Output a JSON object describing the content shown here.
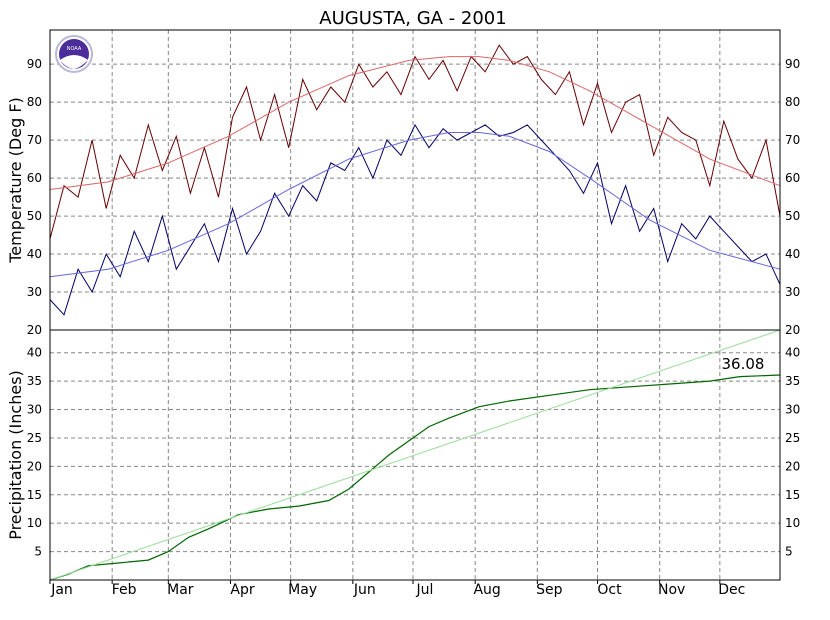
{
  "logo": {
    "text": "NOAA",
    "icon": "noaa-logo-icon",
    "color": "#4a2d9a"
  },
  "chart_data": [
    {
      "type": "line",
      "title": "AUGUSTA, GA - 2001",
      "ylabel": "Temperature (Deg F)",
      "xlabel": "",
      "ylim": [
        20,
        99
      ],
      "yticks": [
        20,
        30,
        40,
        50,
        60,
        70,
        80,
        90
      ],
      "categories": [
        "Jan",
        "Feb",
        "Mar",
        "Apr",
        "May",
        "Jun",
        "Jul",
        "Aug",
        "Sep",
        "Oct",
        "Nov",
        "Dec"
      ],
      "grid": true,
      "x_unit": "day of year",
      "series": [
        {
          "color": "#660000",
          "x": [
            1,
            8,
            15,
            22,
            29,
            36,
            43,
            50,
            57,
            64,
            71,
            78,
            85,
            92,
            99,
            106,
            113,
            120,
            127,
            134,
            141,
            148,
            155,
            162,
            169,
            176,
            183,
            190,
            197,
            204,
            211,
            218,
            225,
            232,
            239,
            246,
            253,
            260,
            267,
            274,
            281,
            288,
            295,
            302,
            309,
            316,
            323,
            330,
            337,
            344,
            351,
            358,
            365
          ],
          "values": [
            44,
            58,
            55,
            70,
            52,
            66,
            60,
            74,
            62,
            71,
            56,
            68,
            55,
            76,
            84,
            70,
            82,
            68,
            86,
            78,
            84,
            80,
            90,
            84,
            88,
            82,
            92,
            86,
            91,
            83,
            92,
            88,
            95,
            90,
            92,
            86,
            82,
            88,
            74,
            85,
            72,
            80,
            82,
            66,
            76,
            72,
            70,
            58,
            75,
            65,
            60,
            70,
            50
          ]
        },
        {
          "color": "#000066",
          "x": [
            1,
            8,
            15,
            22,
            29,
            36,
            43,
            50,
            57,
            64,
            71,
            78,
            85,
            92,
            99,
            106,
            113,
            120,
            127,
            134,
            141,
            148,
            155,
            162,
            169,
            176,
            183,
            190,
            197,
            204,
            211,
            218,
            225,
            232,
            239,
            246,
            253,
            260,
            267,
            274,
            281,
            288,
            295,
            302,
            309,
            316,
            323,
            330,
            337,
            344,
            351,
            358,
            365
          ],
          "values": [
            28,
            24,
            36,
            30,
            40,
            34,
            46,
            38,
            50,
            36,
            42,
            48,
            38,
            52,
            40,
            46,
            56,
            50,
            58,
            54,
            64,
            62,
            68,
            60,
            70,
            66,
            74,
            68,
            73,
            70,
            72,
            74,
            71,
            72,
            74,
            70,
            66,
            62,
            56,
            64,
            48,
            58,
            46,
            52,
            38,
            48,
            44,
            50,
            46,
            42,
            38,
            40,
            32
          ]
        },
        {
          "color": "#dd6666",
          "x": [
            1,
            30,
            60,
            90,
            120,
            150,
            180,
            200,
            215,
            230,
            250,
            270,
            300,
            330,
            365
          ],
          "values": [
            57,
            59,
            64,
            71,
            80,
            87,
            91,
            92,
            92,
            91,
            88,
            83,
            74,
            65,
            58
          ]
        },
        {
          "color": "#6666dd",
          "x": [
            1,
            30,
            60,
            90,
            120,
            150,
            180,
            200,
            215,
            230,
            250,
            270,
            300,
            330,
            365
          ],
          "values": [
            34,
            36,
            41,
            48,
            57,
            65,
            70,
            72,
            72,
            71,
            67,
            60,
            49,
            41,
            36
          ]
        }
      ]
    },
    {
      "type": "line",
      "ylabel": "Precipitation (Inches)",
      "xlabel": "",
      "ylim": [
        0,
        44
      ],
      "yticks": [
        5,
        10,
        15,
        20,
        25,
        30,
        35,
        40
      ],
      "categories": [
        "Jan",
        "Feb",
        "Mar",
        "Apr",
        "May",
        "Jun",
        "Jul",
        "Aug",
        "Sep",
        "Oct",
        "Nov",
        "Dec"
      ],
      "grid": true,
      "annotation": "36.08",
      "x_unit": "day of year",
      "series": [
        {
          "color": "#006600",
          "x": [
            1,
            10,
            20,
            35,
            50,
            60,
            70,
            80,
            95,
            110,
            125,
            140,
            150,
            160,
            170,
            180,
            190,
            200,
            215,
            230,
            250,
            270,
            290,
            310,
            330,
            345,
            365
          ],
          "values": [
            0,
            1,
            2.5,
            3,
            3.5,
            5,
            7.5,
            9,
            11.5,
            12.5,
            13,
            14,
            16,
            19,
            22,
            24.5,
            27,
            28.5,
            30.5,
            31.5,
            32.5,
            33.5,
            34,
            34.5,
            35,
            35.8,
            36.08
          ]
        },
        {
          "color": "#99dd99",
          "x": [
            1,
            365
          ],
          "values": [
            0,
            44
          ]
        }
      ]
    }
  ]
}
